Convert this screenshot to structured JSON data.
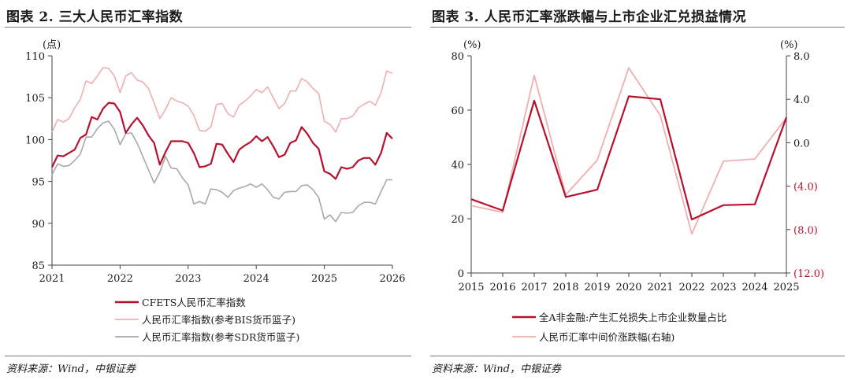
{
  "panels": [
    {
      "title": "图表 2. 三大人民币汇率指数",
      "source": "资料来源：Wind，中银证券"
    },
    {
      "title": "图表 3. 人民币汇率涨跌幅与上市企业汇兑损益情况",
      "source": "资料来源：Wind，中银证券"
    }
  ],
  "chart_data": [
    {
      "type": "line",
      "unit_label": "(点)",
      "ylim": [
        85,
        110
      ],
      "yticks": [
        85,
        90,
        95,
        100,
        105,
        110
      ],
      "xlim": [
        2021,
        2026
      ],
      "xticks": [
        "2021",
        "2022",
        "2023",
        "2024",
        "2025",
        "2026"
      ],
      "grid": false,
      "legend_position": "bottom",
      "series": [
        {
          "name": "CFETS人民币汇率指数",
          "color": "#b5122e",
          "x": [
            2021.0,
            2021.083,
            2021.167,
            2021.25,
            2021.333,
            2021.417,
            2021.5,
            2021.583,
            2021.667,
            2021.75,
            2021.833,
            2021.917,
            2022.0,
            2022.083,
            2022.167,
            2022.25,
            2022.333,
            2022.417,
            2022.5,
            2022.583,
            2022.667,
            2022.75,
            2022.833,
            2022.917,
            2023.0,
            2023.083,
            2023.167,
            2023.25,
            2023.333,
            2023.417,
            2023.5,
            2023.583,
            2023.667,
            2023.75,
            2023.833,
            2023.917,
            2024.0,
            2024.083,
            2024.167,
            2024.25,
            2024.333,
            2024.417,
            2024.5,
            2024.583,
            2024.667,
            2024.75,
            2024.833,
            2024.917,
            2025.0,
            2025.083,
            2025.167,
            2025.25,
            2025.333,
            2025.417,
            2025.5,
            2025.583,
            2025.667,
            2025.75,
            2025.833,
            2025.917,
            2026.0
          ],
          "y": [
            96.7,
            98.1,
            98.0,
            98.4,
            98.8,
            100.2,
            100.6,
            102.7,
            102.4,
            103.7,
            104.4,
            104.3,
            103.3,
            100.8,
            101.8,
            102.6,
            101.7,
            100.5,
            99.6,
            97.0,
            98.5,
            99.8,
            99.8,
            99.8,
            99.6,
            98.4,
            96.7,
            96.8,
            97.1,
            99.5,
            99.4,
            98.3,
            97.3,
            98.8,
            99.3,
            99.7,
            100.4,
            99.8,
            100.3,
            99.2,
            97.9,
            98.2,
            99.6,
            99.9,
            101.5,
            100.7,
            99.6,
            98.9,
            96.2,
            95.9,
            95.3,
            96.7,
            96.5,
            96.7,
            97.5,
            97.8,
            97.8,
            97.0,
            98.4,
            100.8,
            100.1
          ]
        },
        {
          "name": "人民币汇率指数(参考BIS货币篮子)",
          "color": "#f1aeb0",
          "x": [
            2021.0,
            2021.083,
            2021.167,
            2021.25,
            2021.333,
            2021.417,
            2021.5,
            2021.583,
            2021.667,
            2021.75,
            2021.833,
            2021.917,
            2022.0,
            2022.083,
            2022.167,
            2022.25,
            2022.333,
            2022.417,
            2022.5,
            2022.583,
            2022.667,
            2022.75,
            2022.833,
            2022.917,
            2023.0,
            2023.083,
            2023.167,
            2023.25,
            2023.333,
            2023.417,
            2023.5,
            2023.583,
            2023.667,
            2023.75,
            2023.833,
            2023.917,
            2024.0,
            2024.083,
            2024.167,
            2024.25,
            2024.333,
            2024.417,
            2024.5,
            2024.583,
            2024.667,
            2024.75,
            2024.833,
            2024.917,
            2025.0,
            2025.083,
            2025.167,
            2025.25,
            2025.333,
            2025.417,
            2025.5,
            2025.583,
            2025.667,
            2025.75,
            2025.833,
            2025.917,
            2026.0
          ],
          "y": [
            100.9,
            102.4,
            102.1,
            102.5,
            103.8,
            104.8,
            107.0,
            106.7,
            107.6,
            108.6,
            108.5,
            107.6,
            105.6,
            107.6,
            108.0,
            107.1,
            106.9,
            106.1,
            104.4,
            102.5,
            103.6,
            105.0,
            104.6,
            104.4,
            104.0,
            102.9,
            101.1,
            101.0,
            101.5,
            104.2,
            104.3,
            103.1,
            102.7,
            104.1,
            104.6,
            105.2,
            106.0,
            105.6,
            106.3,
            105.0,
            103.7,
            104.3,
            105.8,
            105.8,
            107.3,
            106.9,
            106.1,
            105.5,
            102.2,
            101.8,
            100.9,
            102.5,
            102.5,
            102.8,
            103.8,
            104.2,
            104.6,
            104.1,
            105.6,
            108.2,
            107.9
          ]
        },
        {
          "name": "人民币汇率指数(参考SDR货币篮子)",
          "color": "#a9a9a9",
          "x": [
            2021.0,
            2021.083,
            2021.167,
            2021.25,
            2021.333,
            2021.417,
            2021.5,
            2021.583,
            2021.667,
            2021.75,
            2021.833,
            2021.917,
            2022.0,
            2022.083,
            2022.167,
            2022.25,
            2022.333,
            2022.417,
            2022.5,
            2022.583,
            2022.667,
            2022.75,
            2022.833,
            2022.917,
            2023.0,
            2023.083,
            2023.167,
            2023.25,
            2023.333,
            2023.417,
            2023.5,
            2023.583,
            2023.667,
            2023.75,
            2023.833,
            2023.917,
            2024.0,
            2024.083,
            2024.167,
            2024.25,
            2024.333,
            2024.417,
            2024.5,
            2024.583,
            2024.667,
            2024.75,
            2024.833,
            2024.917,
            2025.0,
            2025.083,
            2025.167,
            2025.25,
            2025.333,
            2025.417,
            2025.5,
            2025.583,
            2025.667,
            2025.75,
            2025.833,
            2025.917,
            2026.0
          ],
          "y": [
            95.8,
            97.1,
            96.8,
            96.9,
            97.5,
            98.3,
            100.3,
            100.3,
            101.3,
            102.0,
            102.2,
            101.2,
            99.4,
            100.7,
            100.8,
            99.6,
            98.0,
            96.4,
            94.8,
            96.1,
            98.0,
            96.6,
            96.5,
            95.4,
            94.6,
            92.3,
            92.6,
            92.3,
            94.1,
            94.0,
            93.7,
            93.1,
            93.9,
            94.2,
            94.4,
            94.7,
            94.3,
            94.7,
            94.0,
            93.1,
            92.9,
            93.7,
            93.8,
            93.8,
            94.5,
            94.6,
            94.0,
            93.1,
            90.5,
            91.0,
            90.2,
            91.3,
            91.2,
            91.3,
            92.1,
            92.5,
            92.5,
            92.3,
            93.8,
            95.2,
            95.2
          ]
        }
      ]
    },
    {
      "type": "line",
      "left_unit_label": "(%)",
      "right_unit_label": "(%)",
      "ylim_left": [
        0,
        80
      ],
      "yticks_left": [
        "0",
        "20",
        "40",
        "60",
        "80"
      ],
      "ylim_right": [
        -12,
        8
      ],
      "yticks_right": [
        "(12.0)",
        "(8.0)",
        "(4.0)",
        "0.0",
        "4.0",
        "8.0"
      ],
      "right_axis_color": "#b5122e",
      "categories": [
        "2015",
        "2016",
        "2017",
        "2018",
        "2019",
        "2020",
        "2021",
        "2022",
        "2023",
        "2024",
        "2025"
      ],
      "grid": false,
      "legend_position": "bottom",
      "series": [
        {
          "name": "全A非金融:产生汇兑损失上市企业数量占比",
          "axis": "left",
          "color": "#b5122e",
          "x": [
            2015,
            2016,
            2017,
            2018,
            2019,
            2020,
            2021,
            2022,
            2023,
            2024,
            2025
          ],
          "y": [
            27.2,
            23.0,
            63.5,
            28.0,
            30.7,
            65.1,
            64.0,
            19.7,
            25.0,
            25.3,
            57.3
          ]
        },
        {
          "name": "人民币汇率中间价涨跌幅(右轴)",
          "axis": "right",
          "color": "#f1aeb0",
          "x": [
            2015,
            2016,
            2017,
            2018,
            2019,
            2020,
            2021,
            2022,
            2023,
            2024,
            2025
          ],
          "y": [
            -5.8,
            -6.4,
            6.2,
            -4.8,
            -1.6,
            6.9,
            2.5,
            -8.4,
            -1.7,
            -1.5,
            2.3
          ]
        }
      ]
    }
  ]
}
